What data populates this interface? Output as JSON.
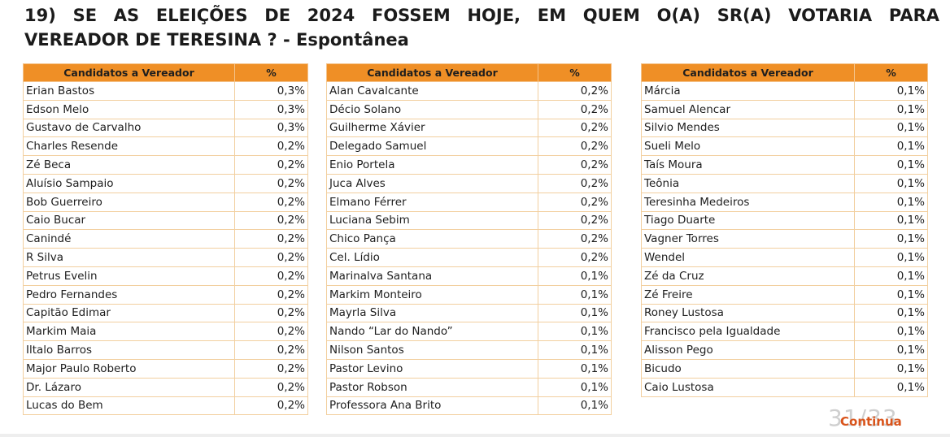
{
  "title": {
    "line1": "19) SE AS ELEIÇÕES DE 2024 FOSSEM HOJE, EM QUEM O(A) SR(A) VOTARIA PARA",
    "line2": "VEREADOR DE TERESINA ? - Espontânea"
  },
  "tables": [
    {
      "header_name": "Candidatos a Vereador",
      "header_pct": "%",
      "rows": [
        {
          "name": "Erian Bastos",
          "pct": "0,3%"
        },
        {
          "name": "Edson Melo",
          "pct": "0,3%"
        },
        {
          "name": "Gustavo de Carvalho",
          "pct": "0,3%"
        },
        {
          "name": "Charles Resende",
          "pct": "0,2%"
        },
        {
          "name": "Zé Beca",
          "pct": "0,2%"
        },
        {
          "name": "Aluísio Sampaio",
          "pct": "0,2%"
        },
        {
          "name": "Bob Guerreiro",
          "pct": "0,2%"
        },
        {
          "name": "Caio Bucar",
          "pct": "0,2%"
        },
        {
          "name": "Canindé",
          "pct": "0,2%"
        },
        {
          "name": "R Silva",
          "pct": "0,2%"
        },
        {
          "name": "Petrus Evelin",
          "pct": "0,2%"
        },
        {
          "name": "Pedro Fernandes",
          "pct": "0,2%"
        },
        {
          "name": "Capitão Edimar",
          "pct": "0,2%"
        },
        {
          "name": "Markim Maia",
          "pct": "0,2%"
        },
        {
          "name": "Iltalo Barros",
          "pct": "0,2%"
        },
        {
          "name": "Major Paulo Roberto",
          "pct": "0,2%"
        },
        {
          "name": "Dr. Lázaro",
          "pct": "0,2%"
        },
        {
          "name": "Lucas do Bem",
          "pct": "0,2%"
        }
      ]
    },
    {
      "header_name": "Candidatos a Vereador",
      "header_pct": "%",
      "rows": [
        {
          "name": "Alan Cavalcante",
          "pct": "0,2%"
        },
        {
          "name": "Décio Solano",
          "pct": "0,2%"
        },
        {
          "name": "Guilherme Xávier",
          "pct": "0,2%"
        },
        {
          "name": "Delegado Samuel",
          "pct": "0,2%"
        },
        {
          "name": "Enio Portela",
          "pct": "0,2%"
        },
        {
          "name": "Juca Alves",
          "pct": "0,2%"
        },
        {
          "name": "Elmano Férrer",
          "pct": "0,2%"
        },
        {
          "name": "Luciana Sebim",
          "pct": "0,2%"
        },
        {
          "name": "Chico Pança",
          "pct": "0,2%"
        },
        {
          "name": "Cel. Lídio",
          "pct": "0,2%"
        },
        {
          "name": "Marinalva Santana",
          "pct": "0,1%"
        },
        {
          "name": "Markim Monteiro",
          "pct": "0,1%"
        },
        {
          "name": "Mayrla Silva",
          "pct": "0,1%"
        },
        {
          "name": "Nando “Lar do Nando”",
          "pct": "0,1%"
        },
        {
          "name": "Nilson Santos",
          "pct": "0,1%"
        },
        {
          "name": "Pastor Levino",
          "pct": "0,1%"
        },
        {
          "name": "Pastor Robson",
          "pct": "0,1%"
        },
        {
          "name": "Professora Ana Brito",
          "pct": "0,1%"
        }
      ]
    },
    {
      "header_name": "Candidatos a Vereador",
      "header_pct": "%",
      "rows": [
        {
          "name": "Márcia",
          "pct": "0,1%"
        },
        {
          "name": "Samuel Alencar",
          "pct": "0,1%"
        },
        {
          "name": "Silvio Mendes",
          "pct": "0,1%"
        },
        {
          "name": "Sueli Melo",
          "pct": "0,1%"
        },
        {
          "name": "Taís Moura",
          "pct": "0,1%"
        },
        {
          "name": "Teônia",
          "pct": "0,1%"
        },
        {
          "name": "Teresinha Medeiros",
          "pct": "0,1%"
        },
        {
          "name": "Tiago Duarte",
          "pct": "0,1%"
        },
        {
          "name": "Vagner Torres",
          "pct": "0,1%"
        },
        {
          "name": "Wendel",
          "pct": "0,1%"
        },
        {
          "name": "Zé da Cruz",
          "pct": "0,1%"
        },
        {
          "name": "Zé Freire",
          "pct": "0,1%"
        },
        {
          "name": "Roney Lustosa",
          "pct": "0,1%"
        },
        {
          "name": "Francisco pela Igualdade",
          "pct": "0,1%"
        },
        {
          "name": "Alisson Pego",
          "pct": "0,1%"
        },
        {
          "name": "Bicudo",
          "pct": "0,1%"
        },
        {
          "name": "Caio Lustosa",
          "pct": "0,1%"
        }
      ]
    }
  ],
  "footer": {
    "page": "31/33",
    "continue_label": "Continua"
  },
  "colors": {
    "header_bg": "#ef8f26",
    "cell_border": "#f2cf9f",
    "continue_text": "#d9541b"
  }
}
